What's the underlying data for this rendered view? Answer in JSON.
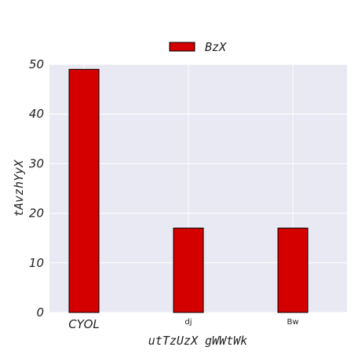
{
  "chart_data": {
    "type": "bar",
    "categories": [
      "CYOL",
      "dj",
      "Bw"
    ],
    "series": [
      {
        "name": "BzX",
        "values": [
          49,
          17,
          17
        ],
        "color": "#d40000"
      }
    ],
    "xlabel": "utTzUzX gWWtWk",
    "ylabel": "tAvzhYyX",
    "ylim": [
      0,
      50
    ],
    "yticks": [
      0,
      10,
      20,
      30,
      40,
      50
    ],
    "grid": true,
    "legend_position": "top-center",
    "plot_background": "#e8e9f2",
    "edge_color": "#000000"
  }
}
